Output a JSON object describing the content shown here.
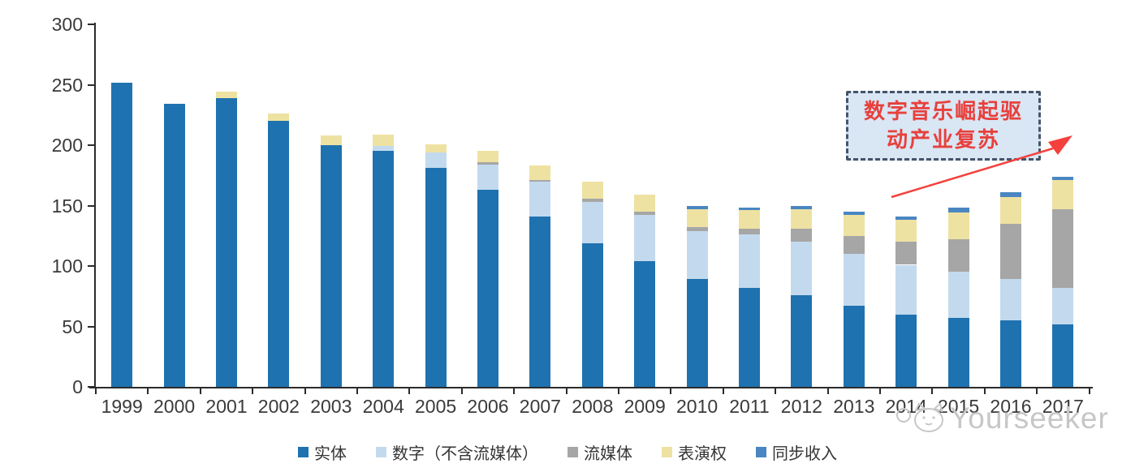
{
  "chart_data": {
    "type": "bar",
    "subtype": "stacked",
    "categories": [
      "1999",
      "2000",
      "2001",
      "2002",
      "2003",
      "2004",
      "2005",
      "2006",
      "2007",
      "2008",
      "2009",
      "2010",
      "2011",
      "2012",
      "2013",
      "2014",
      "2015",
      "2016",
      "2017"
    ],
    "series": [
      {
        "name": "实体",
        "color": "#1f72b0",
        "values": [
          252,
          234,
          239,
          220,
          200,
          195,
          181,
          163,
          141,
          119,
          104,
          89,
          82,
          76,
          67,
          60,
          57,
          55,
          52
        ]
      },
      {
        "name": "数字（不含流媒体）",
        "color": "#c3daee",
        "values": [
          0,
          0,
          0,
          0,
          0,
          4,
          13,
          21,
          29,
          34,
          38,
          40,
          44,
          44,
          43,
          41,
          38,
          34,
          30
        ]
      },
      {
        "name": "流媒体",
        "color": "#a6a6a6",
        "values": [
          0,
          0,
          0,
          0,
          0,
          0,
          0,
          2,
          1,
          3,
          3,
          3,
          5,
          11,
          15,
          19,
          27,
          46,
          65
        ]
      },
      {
        "name": "表演权",
        "color": "#eee2a2",
        "values": [
          0,
          0,
          5,
          6,
          8,
          10,
          7,
          9,
          12,
          14,
          14,
          15,
          15,
          16,
          17,
          18,
          22,
          22,
          24
        ]
      },
      {
        "name": "同步收入",
        "color": "#4a86c2",
        "values": [
          0,
          0,
          0,
          0,
          0,
          0,
          0,
          0,
          0,
          0,
          0,
          3,
          2,
          3,
          3,
          3,
          4,
          4,
          3
        ]
      }
    ],
    "title": "",
    "xlabel": "",
    "ylabel": "",
    "ylim": [
      0,
      300
    ],
    "yticks": [
      0,
      50,
      100,
      150,
      200,
      250,
      300
    ],
    "grid": false,
    "legend_position": "bottom"
  },
  "annotation": {
    "line1": "数字音乐崛起驱",
    "line2": "动产业复苏",
    "box_fill": "#d9e6f4",
    "border_color": "#44546a",
    "text_color": "#e8403c",
    "arrow_color": "#f4413d"
  },
  "watermark": {
    "text": "Yourseeker",
    "logo": "cat-logo",
    "color": "#c7c7c7"
  },
  "axis": {
    "color": "#2b2b2b",
    "label_color": "#3a3a3a"
  }
}
